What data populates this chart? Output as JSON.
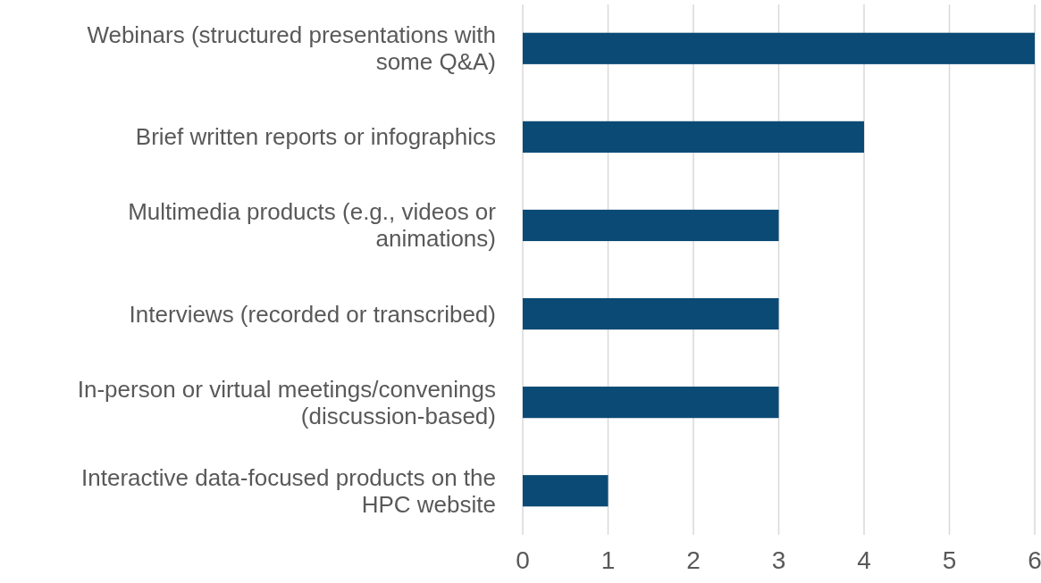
{
  "chart_data": {
    "type": "bar",
    "orientation": "horizontal",
    "categories": [
      "Webinars (structured presentations with some Q&A)",
      "Brief written reports or infographics",
      "Multimedia products (e.g., videos or animations)",
      "Interviews (recorded or transcribed)",
      "In-person or virtual meetings/convenings (discussion-based)",
      "Interactive data-focused products on the HPC website"
    ],
    "values": [
      6,
      4,
      3,
      3,
      3,
      1
    ],
    "color": "#0b4a75",
    "xlim": [
      0,
      6
    ],
    "xticks": [
      0,
      1,
      2,
      3,
      4,
      5,
      6
    ],
    "grid": "x"
  }
}
